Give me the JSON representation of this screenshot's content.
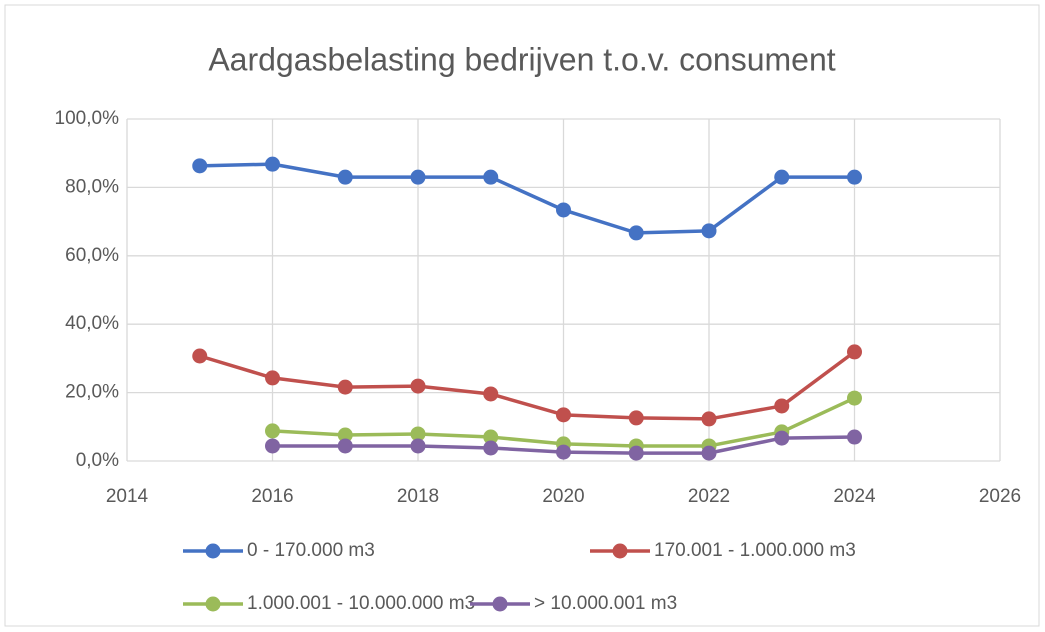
{
  "chart_data": {
    "type": "line",
    "title": "Aardgasbelasting bedrijven t.o.v. consument",
    "x": [
      2015,
      2016,
      2017,
      2018,
      2019,
      2020,
      2021,
      2022,
      2023,
      2024
    ],
    "series": [
      {
        "name": "0 - 170.000 m3",
        "color": "#4472c4",
        "values": [
          86.3,
          86.8,
          83.0,
          83.0,
          83.0,
          73.4,
          66.7,
          67.3,
          83.0,
          83.0
        ]
      },
      {
        "name": "170.001 - 1.000.000 m3",
        "color": "#c0504d",
        "values": [
          30.7,
          24.3,
          21.6,
          21.9,
          19.6,
          13.5,
          12.6,
          12.3,
          16.1,
          31.9
        ]
      },
      {
        "name": "1.000.001 - 10.000.000 m3",
        "color": "#9bbb59",
        "values": [
          null,
          8.8,
          7.6,
          7.9,
          7.0,
          5.0,
          4.4,
          4.4,
          8.5,
          18.4
        ]
      },
      {
        "name": "> 10.000.001 m3",
        "color": "#8064a2",
        "values": [
          null,
          4.4,
          4.4,
          4.4,
          3.8,
          2.6,
          2.3,
          2.3,
          6.7,
          7.0
        ]
      }
    ],
    "xlim": [
      2014,
      2026
    ],
    "xticks": [
      2014,
      2016,
      2018,
      2020,
      2022,
      2024,
      2026
    ],
    "ylim": [
      0,
      100
    ],
    "yticks": [
      {
        "value": 0,
        "label": "0,0%"
      },
      {
        "value": 20,
        "label": "20,0%"
      },
      {
        "value": 40,
        "label": "40,0%"
      },
      {
        "value": 60,
        "label": "60,0%"
      },
      {
        "value": 80,
        "label": "80,0%"
      },
      {
        "value": 100,
        "label": "100,0%"
      }
    ],
    "grid": true,
    "legend": "bottom"
  }
}
